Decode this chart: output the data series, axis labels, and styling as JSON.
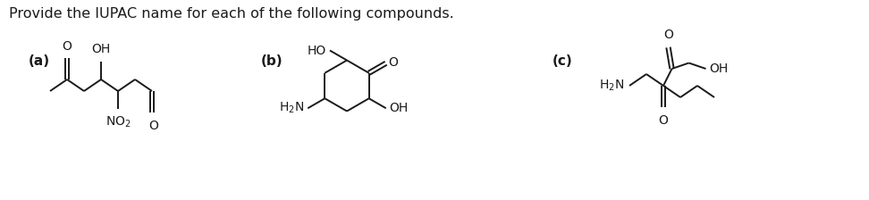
{
  "title": "Provide the IUPAC name for each of the following compounds.",
  "title_fontsize": 11.5,
  "title_color": "#1a1a1a",
  "bg_color": "#ffffff",
  "label_a": "(a)",
  "label_b": "(b)",
  "label_c": "(c)",
  "label_fontsize": 11,
  "text_color": "#1a1a1a",
  "bond_color": "#1a1a1a",
  "bond_lw": 1.4,
  "figw": 9.72,
  "figh": 2.24
}
